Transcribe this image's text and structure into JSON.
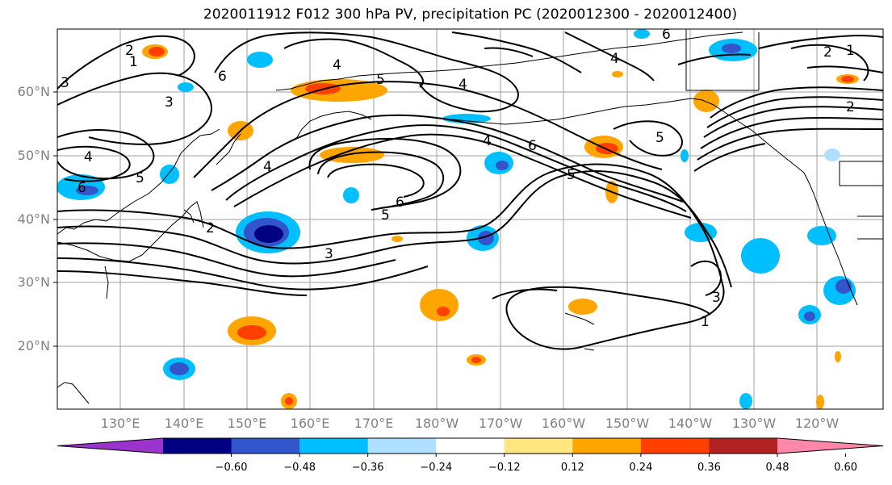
{
  "title": "2020011912 F012 300 hPa PV, precipitation PC (2020012300 - 2020012400)",
  "lat_labels": [
    "60°N",
    "50°N",
    "40°N",
    "30°N",
    "20°N"
  ],
  "lon_labels": [
    "130°E",
    "140°E",
    "150°E",
    "160°E",
    "170°E",
    "180°W",
    "170°W",
    "160°W",
    "150°W",
    "140°W",
    "130°W",
    "120°W"
  ],
  "contour_labels": [
    "1",
    "2",
    "3",
    "4",
    "5",
    "6",
    "2",
    "3",
    "4",
    "5",
    "6",
    "5",
    "6",
    "4",
    "3",
    "4",
    "5",
    "6",
    "6",
    "5",
    "4",
    "2",
    "1",
    "2",
    "3",
    "1",
    "4"
  ],
  "colorbar": {
    "ticks": [
      "−0.60",
      "−0.48",
      "−0.36",
      "−0.24",
      "−0.12",
      "0.12",
      "0.24",
      "0.36",
      "0.48",
      "0.60"
    ],
    "colors": [
      "#9933cc",
      "#000080",
      "#3355cc",
      "#00bfff",
      "#b0e0ff",
      "#ffffff",
      "#ffe680",
      "#ffa500",
      "#ff4000",
      "#b22222",
      "#ff88aa"
    ]
  },
  "colors": {
    "contour": "#000000",
    "grid": "#a0a0a0",
    "coast": "#000000"
  }
}
